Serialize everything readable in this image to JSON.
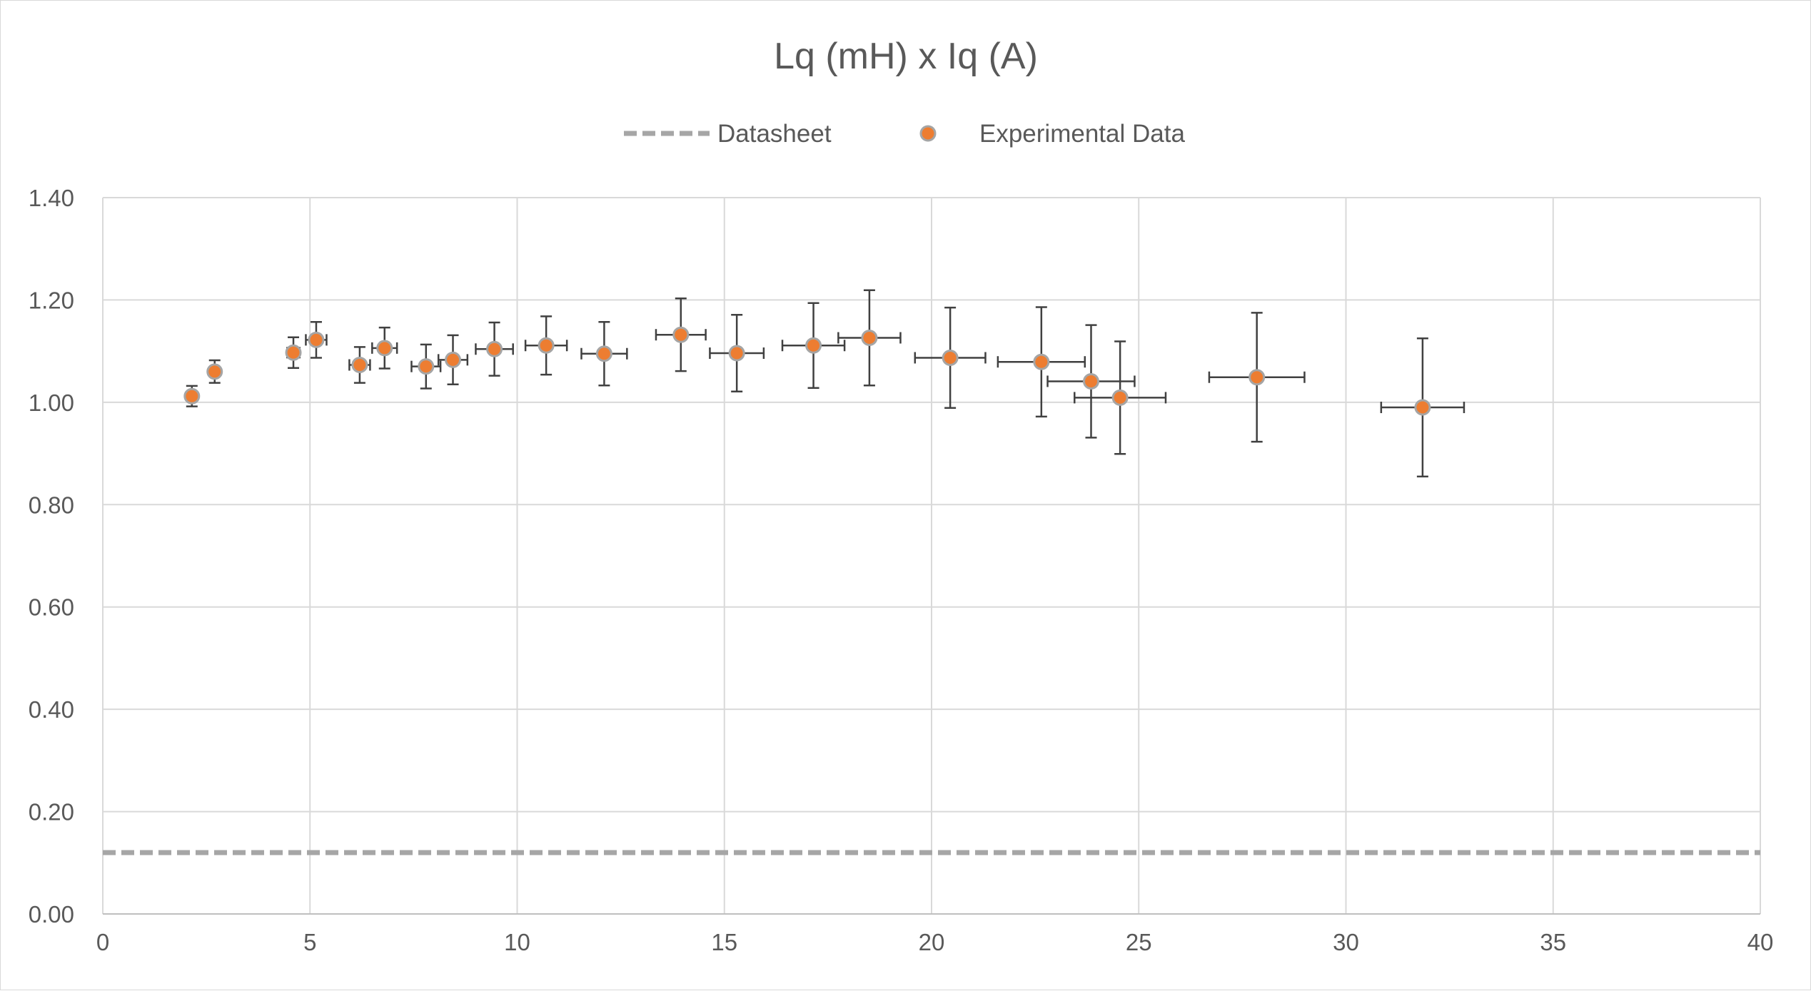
{
  "chart_data": {
    "type": "scatter",
    "title": "Lq (mH) x Iq (A)",
    "xlabel": "",
    "ylabel": "",
    "xlim": [
      0,
      40
    ],
    "ylim": [
      0,
      1.4
    ],
    "x_ticks": [
      "0",
      "5",
      "10",
      "15",
      "20",
      "25",
      "30",
      "35",
      "40"
    ],
    "y_ticks": [
      "0.00",
      "0.20",
      "0.40",
      "0.60",
      "0.80",
      "1.00",
      "1.20",
      "1.40"
    ],
    "grid": true,
    "legend_position": "top",
    "series": [
      {
        "name": "Datasheet",
        "style": "dashed-line",
        "color": "#a6a6a6",
        "x": [
          0,
          40
        ],
        "y": [
          0.12,
          0.12
        ]
      },
      {
        "name": "Experimental Data",
        "style": "markers",
        "color": "#ed7d31",
        "marker_edge_color": "#a5a5a5",
        "error_bar_color": "#404040",
        "points": [
          {
            "x": 2.15,
            "y": 1.012,
            "xerr": 0.0,
            "yerr": 0.02
          },
          {
            "x": 2.7,
            "y": 1.06,
            "xerr": 0.0,
            "yerr": 0.022
          },
          {
            "x": 4.6,
            "y": 1.097,
            "xerr": 0.15,
            "yerr": 0.03
          },
          {
            "x": 5.15,
            "y": 1.122,
            "xerr": 0.25,
            "yerr": 0.035
          },
          {
            "x": 6.2,
            "y": 1.073,
            "xerr": 0.25,
            "yerr": 0.035
          },
          {
            "x": 6.8,
            "y": 1.106,
            "xerr": 0.3,
            "yerr": 0.04
          },
          {
            "x": 7.8,
            "y": 1.07,
            "xerr": 0.35,
            "yerr": 0.043
          },
          {
            "x": 8.45,
            "y": 1.083,
            "xerr": 0.35,
            "yerr": 0.048
          },
          {
            "x": 9.45,
            "y": 1.104,
            "xerr": 0.45,
            "yerr": 0.052
          },
          {
            "x": 10.7,
            "y": 1.111,
            "xerr": 0.5,
            "yerr": 0.057
          },
          {
            "x": 12.1,
            "y": 1.095,
            "xerr": 0.55,
            "yerr": 0.062
          },
          {
            "x": 13.95,
            "y": 1.132,
            "xerr": 0.6,
            "yerr": 0.071
          },
          {
            "x": 15.3,
            "y": 1.096,
            "xerr": 0.65,
            "yerr": 0.075
          },
          {
            "x": 17.15,
            "y": 1.111,
            "xerr": 0.75,
            "yerr": 0.083
          },
          {
            "x": 18.5,
            "y": 1.126,
            "xerr": 0.75,
            "yerr": 0.093
          },
          {
            "x": 20.45,
            "y": 1.087,
            "xerr": 0.85,
            "yerr": 0.098
          },
          {
            "x": 22.65,
            "y": 1.079,
            "xerr": 1.05,
            "yerr": 0.107
          },
          {
            "x": 23.85,
            "y": 1.041,
            "xerr": 1.05,
            "yerr": 0.11
          },
          {
            "x": 24.55,
            "y": 1.009,
            "xerr": 1.1,
            "yerr": 0.11
          },
          {
            "x": 27.85,
            "y": 1.049,
            "xerr": 1.15,
            "yerr": 0.126
          },
          {
            "x": 31.85,
            "y": 0.99,
            "xerr": 1.0,
            "yerr": 0.135
          }
        ]
      }
    ]
  }
}
